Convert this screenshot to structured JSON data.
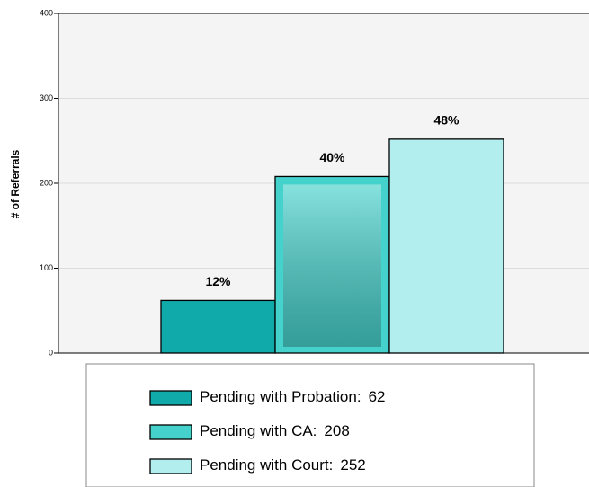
{
  "chart_data": {
    "type": "bar",
    "ylabel": "# of Referrals",
    "ylim": [
      0,
      400
    ],
    "yticks": [
      0,
      100,
      200,
      300,
      400
    ],
    "grid": true,
    "series": [
      {
        "name": "Pending with Probation:",
        "color": "#10aaaa",
        "values": [
          62
        ]
      },
      {
        "name": "Pending with CA:",
        "color": "#46d2cc",
        "values": [
          208
        ]
      },
      {
        "name": "Pending with Court:",
        "color": "#b2eeee",
        "values": [
          252
        ]
      }
    ],
    "shares": [
      12,
      40,
      48
    ],
    "share_labels": [
      "12%",
      "40%",
      "48%"
    ]
  }
}
